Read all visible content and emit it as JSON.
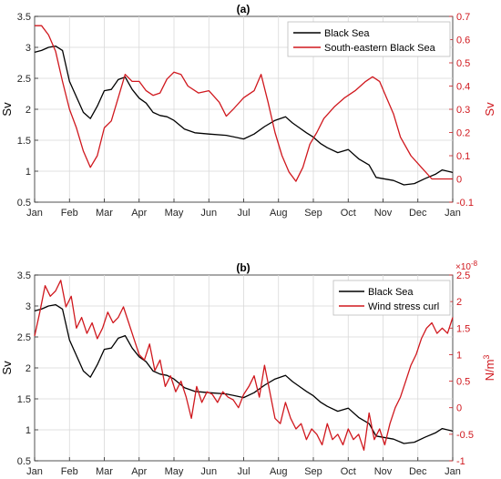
{
  "colors": {
    "black_series": "#000000",
    "red_series": "#d0181e",
    "grid": "#d9d9d9",
    "axis": "#262626"
  },
  "months": [
    "Jan",
    "Feb",
    "Mar",
    "Apr",
    "May",
    "Jun",
    "Jul",
    "Aug",
    "Sep",
    "Oct",
    "Nov",
    "Dec",
    "Jan"
  ],
  "chart_data": [
    {
      "type": "line",
      "title": "(a)",
      "x_ticks": [
        "Jan",
        "Feb",
        "Mar",
        "Apr",
        "May",
        "Jun",
        "Jul",
        "Aug",
        "Sep",
        "Oct",
        "Nov",
        "Dec",
        "Jan"
      ],
      "ylabel_left": "Sv",
      "ylim_left": [
        0.5,
        3.5
      ],
      "yticks_left": [
        "0.5",
        "1",
        "1.5",
        "2",
        "2.5",
        "3",
        "3.5"
      ],
      "ylabel_right": "Sv",
      "ylim_right": [
        -0.1,
        0.7
      ],
      "yticks_right": [
        "-0.1",
        "0",
        "0.1",
        "0.2",
        "0.3",
        "0.4",
        "0.5",
        "0.6",
        "0.7"
      ],
      "grid": true,
      "legend_position": "top-right",
      "series": [
        {
          "name": "Black Sea",
          "axis": "left",
          "color": "#000000",
          "x": [
            0,
            0.2,
            0.4,
            0.6,
            0.8,
            1.0,
            1.2,
            1.4,
            1.6,
            1.8,
            2.0,
            2.2,
            2.4,
            2.6,
            2.8,
            3.0,
            3.2,
            3.4,
            3.6,
            3.8,
            4.0,
            4.3,
            4.6,
            5.0,
            5.5,
            6.0,
            6.3,
            6.6,
            6.9,
            7.2,
            7.4,
            7.6,
            7.8,
            8.0,
            8.2,
            8.4,
            8.7,
            9.0,
            9.3,
            9.6,
            9.8,
            10.0,
            10.3,
            10.6,
            10.9,
            11.2,
            11.5,
            11.7,
            12.0
          ],
          "y": [
            2.92,
            2.95,
            3.0,
            3.02,
            2.95,
            2.45,
            2.2,
            1.95,
            1.85,
            2.05,
            2.3,
            2.32,
            2.48,
            2.52,
            2.32,
            2.18,
            2.1,
            1.95,
            1.9,
            1.88,
            1.82,
            1.68,
            1.62,
            1.6,
            1.58,
            1.52,
            1.6,
            1.72,
            1.82,
            1.88,
            1.78,
            1.7,
            1.62,
            1.55,
            1.45,
            1.38,
            1.3,
            1.35,
            1.2,
            1.1,
            0.9,
            0.88,
            0.85,
            0.78,
            0.8,
            0.88,
            0.95,
            1.02,
            0.98
          ]
        },
        {
          "name": "South-eastern Black Sea",
          "axis": "right",
          "color": "#d0181e",
          "x": [
            0,
            0.2,
            0.4,
            0.6,
            0.8,
            1.0,
            1.2,
            1.4,
            1.6,
            1.8,
            2.0,
            2.2,
            2.4,
            2.6,
            2.8,
            3.0,
            3.2,
            3.4,
            3.6,
            3.8,
            4.0,
            4.2,
            4.4,
            4.7,
            5.0,
            5.3,
            5.5,
            5.7,
            6.0,
            6.3,
            6.5,
            6.7,
            6.9,
            7.1,
            7.3,
            7.5,
            7.7,
            7.9,
            8.1,
            8.3,
            8.6,
            8.9,
            9.2,
            9.5,
            9.7,
            9.9,
            10.1,
            10.3,
            10.5,
            10.8,
            11.1,
            11.4,
            11.7,
            12.0
          ],
          "y": [
            0.66,
            0.66,
            0.62,
            0.55,
            0.42,
            0.3,
            0.22,
            0.12,
            0.05,
            0.1,
            0.22,
            0.25,
            0.35,
            0.45,
            0.42,
            0.42,
            0.38,
            0.36,
            0.37,
            0.43,
            0.46,
            0.45,
            0.4,
            0.37,
            0.38,
            0.33,
            0.27,
            0.3,
            0.35,
            0.38,
            0.45,
            0.33,
            0.2,
            0.1,
            0.03,
            -0.01,
            0.05,
            0.15,
            0.2,
            0.26,
            0.31,
            0.35,
            0.38,
            0.42,
            0.44,
            0.42,
            0.35,
            0.28,
            0.18,
            0.1,
            0.05,
            0.0,
            0.0,
            0.0
          ]
        }
      ]
    },
    {
      "type": "line",
      "title": "(b)",
      "x_ticks": [
        "Jan",
        "Feb",
        "Mar",
        "Apr",
        "May",
        "Jun",
        "Jul",
        "Aug",
        "Sep",
        "Oct",
        "Nov",
        "Dec",
        "Jan"
      ],
      "ylabel_left": "Sv",
      "ylim_left": [
        0.5,
        3.5
      ],
      "yticks_left": [
        "0.5",
        "1",
        "1.5",
        "2",
        "2.5",
        "3",
        "3.5"
      ],
      "ylabel_right_base": "N/m",
      "ylabel_right_sup": "3",
      "ylim_right": [
        -1,
        2.5
      ],
      "yticks_right": [
        "-1",
        "-0.5",
        "0",
        "0.5",
        "1",
        "1.5",
        "2",
        "2.5"
      ],
      "right_exponent_base": "×10",
      "right_exponent_power": "-8",
      "grid": true,
      "legend_position": "top-right",
      "series": [
        {
          "name": "Black Sea",
          "axis": "left",
          "color": "#000000",
          "x": [
            0,
            0.2,
            0.4,
            0.6,
            0.8,
            1.0,
            1.2,
            1.4,
            1.6,
            1.8,
            2.0,
            2.2,
            2.4,
            2.6,
            2.8,
            3.0,
            3.2,
            3.4,
            3.6,
            3.8,
            4.0,
            4.3,
            4.6,
            5.0,
            5.5,
            6.0,
            6.3,
            6.6,
            6.9,
            7.2,
            7.4,
            7.6,
            7.8,
            8.0,
            8.2,
            8.4,
            8.7,
            9.0,
            9.3,
            9.6,
            9.8,
            10.0,
            10.3,
            10.6,
            10.9,
            11.2,
            11.5,
            11.7,
            12.0
          ],
          "y": [
            2.92,
            2.95,
            3.0,
            3.02,
            2.95,
            2.45,
            2.2,
            1.95,
            1.85,
            2.05,
            2.3,
            2.32,
            2.48,
            2.52,
            2.32,
            2.18,
            2.1,
            1.95,
            1.9,
            1.88,
            1.82,
            1.68,
            1.62,
            1.6,
            1.58,
            1.52,
            1.6,
            1.72,
            1.82,
            1.88,
            1.78,
            1.7,
            1.62,
            1.55,
            1.45,
            1.38,
            1.3,
            1.35,
            1.2,
            1.1,
            0.9,
            0.88,
            0.85,
            0.78,
            0.8,
            0.88,
            0.95,
            1.02,
            0.98
          ]
        },
        {
          "name": "Wind stress curl",
          "axis": "right",
          "color": "#d0181e",
          "x": [
            0,
            0.15,
            0.3,
            0.45,
            0.6,
            0.75,
            0.9,
            1.05,
            1.2,
            1.35,
            1.5,
            1.65,
            1.8,
            1.95,
            2.1,
            2.25,
            2.4,
            2.55,
            2.7,
            2.85,
            3.0,
            3.15,
            3.3,
            3.45,
            3.6,
            3.75,
            3.9,
            4.05,
            4.2,
            4.35,
            4.5,
            4.65,
            4.8,
            4.95,
            5.1,
            5.25,
            5.4,
            5.55,
            5.7,
            5.85,
            6.0,
            6.15,
            6.3,
            6.45,
            6.6,
            6.75,
            6.9,
            7.05,
            7.2,
            7.35,
            7.5,
            7.65,
            7.8,
            7.95,
            8.1,
            8.25,
            8.4,
            8.55,
            8.7,
            8.85,
            9.0,
            9.15,
            9.3,
            9.45,
            9.6,
            9.75,
            9.9,
            10.05,
            10.2,
            10.35,
            10.5,
            10.65,
            10.8,
            10.95,
            11.1,
            11.25,
            11.4,
            11.55,
            11.7,
            11.85,
            12.0
          ],
          "y": [
            1.35,
            1.8,
            2.3,
            2.1,
            2.2,
            2.4,
            1.9,
            2.1,
            1.5,
            1.7,
            1.4,
            1.6,
            1.3,
            1.5,
            1.8,
            1.6,
            1.7,
            1.9,
            1.6,
            1.3,
            1.0,
            0.9,
            1.2,
            0.7,
            0.9,
            0.4,
            0.6,
            0.3,
            0.5,
            0.2,
            -0.2,
            0.4,
            0.1,
            0.3,
            0.25,
            0.1,
            0.3,
            0.2,
            0.15,
            0.0,
            0.25,
            0.4,
            0.6,
            0.2,
            0.8,
            0.3,
            -0.2,
            -0.3,
            0.1,
            -0.2,
            -0.4,
            -0.3,
            -0.6,
            -0.4,
            -0.5,
            -0.7,
            -0.3,
            -0.6,
            -0.5,
            -0.7,
            -0.4,
            -0.6,
            -0.5,
            -0.8,
            -0.1,
            -0.6,
            -0.4,
            -0.7,
            -0.3,
            0.0,
            0.2,
            0.5,
            0.8,
            1.0,
            1.3,
            1.5,
            1.6,
            1.4,
            1.5,
            1.4,
            1.7
          ]
        }
      ]
    }
  ]
}
